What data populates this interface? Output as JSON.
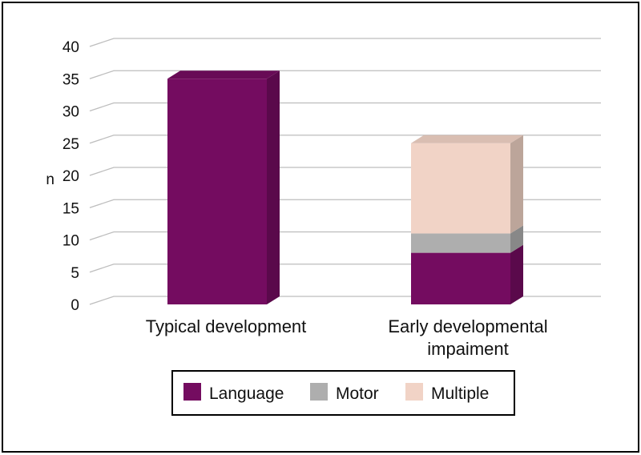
{
  "chart_data": {
    "type": "bar",
    "stacked": true,
    "three_d": true,
    "categories": [
      "Typical development",
      "Early developmental impaiment"
    ],
    "series": [
      {
        "name": "Language",
        "values": [
          35,
          8
        ],
        "color": "#740c60"
      },
      {
        "name": "Motor",
        "values": [
          0,
          3
        ],
        "color": "#aeaeae"
      },
      {
        "name": "Multiple",
        "values": [
          0,
          14
        ],
        "color": "#f1d3c6"
      }
    ],
    "ylabel": "n",
    "yticks": [
      0,
      5,
      10,
      15,
      20,
      25,
      30,
      35,
      40
    ],
    "ylim": [
      0,
      40
    ],
    "grid": true,
    "legend_position": "bottom"
  }
}
